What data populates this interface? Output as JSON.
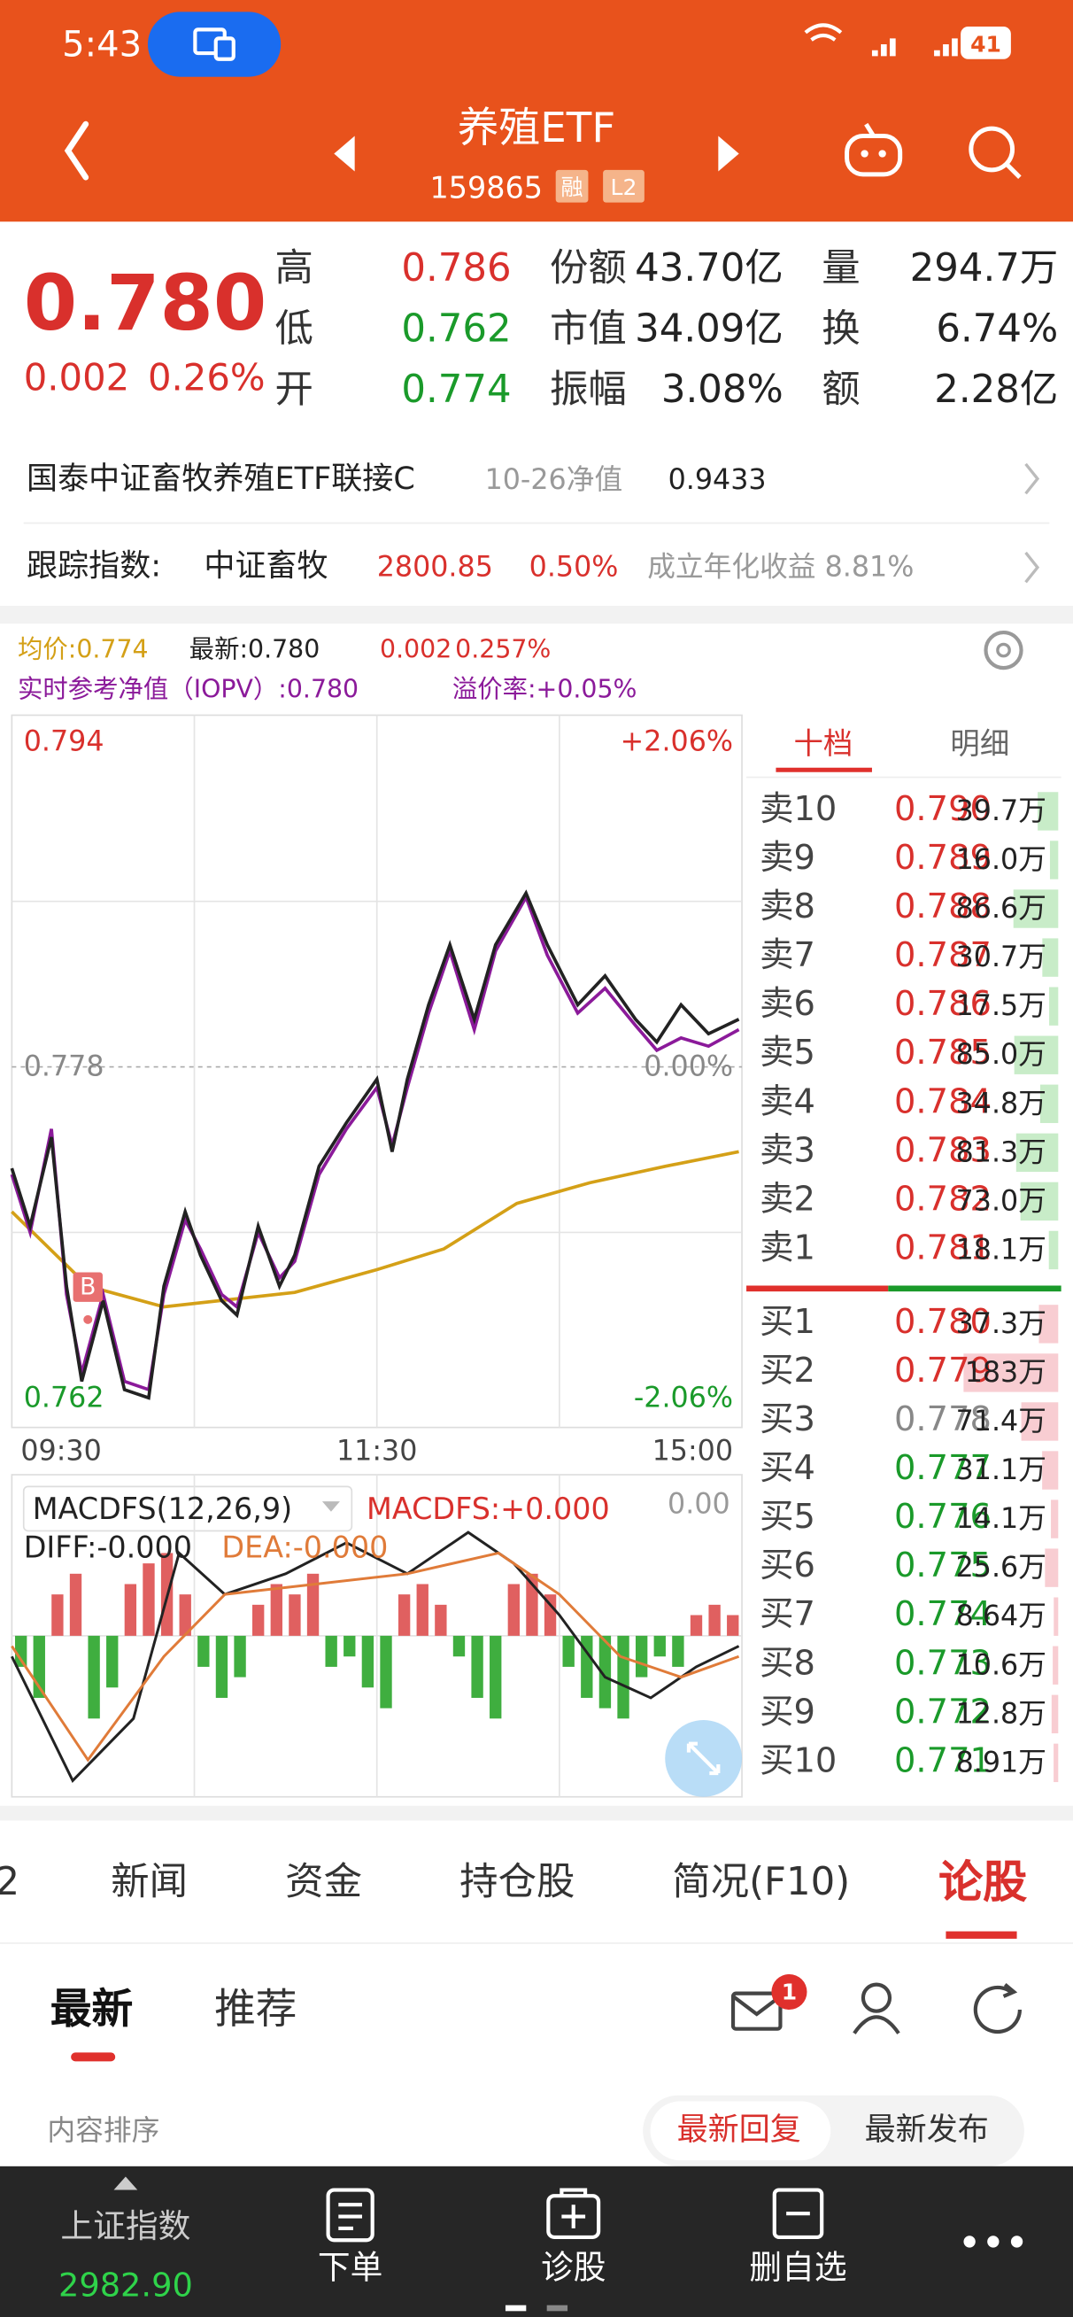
{
  "status_bar": {
    "time": "5:43",
    "battery": "41"
  },
  "header": {
    "title": "养殖ETF",
    "code": "159865",
    "badges": [
      "融",
      "L2"
    ]
  },
  "quote": {
    "price": "0.780",
    "change": "0.002",
    "change_pct": "0.26%",
    "stats": [
      [
        {
          "label": "高",
          "value": "0.786"
        },
        {
          "label": "低",
          "value": "0.762"
        },
        {
          "label": "开",
          "value": "0.774"
        }
      ],
      [
        {
          "label": "份额",
          "value": "43.70亿"
        },
        {
          "label": "市值",
          "value": "34.09亿"
        },
        {
          "label": "振幅",
          "value": "3.08%"
        }
      ],
      [
        {
          "label": "量",
          "value": "294.7万"
        },
        {
          "label": "换",
          "value": "6.74%"
        },
        {
          "label": "额",
          "value": "2.28亿"
        }
      ]
    ]
  },
  "fund_row": {
    "name": "国泰中证畜牧养殖ETF联接C",
    "date_label": "10-26净值",
    "nav": "0.9433"
  },
  "index_row": {
    "label": "跟踪指数:",
    "name": "中证畜牧",
    "value": "2800.85",
    "change": "0.50%",
    "annual": "成立年化收益 8.81%"
  },
  "info": {
    "avg": "均价:0.774",
    "latest": "最新:0.780",
    "change": "0.002",
    "pct": "0.257%",
    "iopv": "实时参考净值（IOPV）:0.780",
    "premium": "溢价率:+0.05%"
  },
  "chart_data": [
    {
      "type": "line",
      "xlim": [
        0,
        240
      ],
      "xticks": [
        {
          "value": 0,
          "label": "09:30"
        },
        {
          "value": 120,
          "label": "11:30"
        },
        {
          "value": 240,
          "label": "15:00"
        }
      ],
      "xgrid": [
        60,
        120,
        180
      ],
      "ylim": [
        0.762,
        0.794
      ],
      "yticks": [
        0.762,
        0.778,
        0.794
      ],
      "ygrid": [
        0.77,
        0.786
      ],
      "right_labels": [
        "-2.06%",
        "0.00%",
        "+2.06%"
      ],
      "series": [
        {
          "color": "#222222",
          "x": [
            0,
            6,
            13,
            18,
            23,
            30,
            37,
            45,
            50,
            57,
            62,
            69,
            74,
            81,
            88,
            93,
            101,
            110,
            120,
            125,
            130,
            137,
            144,
            152,
            159,
            169,
            176,
            186,
            195,
            205,
            212,
            220,
            229,
            239
          ],
          "values": [
            0.7731,
            0.7703,
            0.7746,
            0.7674,
            0.7628,
            0.7667,
            0.7624,
            0.762,
            0.7674,
            0.771,
            0.7689,
            0.7667,
            0.766,
            0.7703,
            0.7674,
            0.7689,
            0.7732,
            0.7753,
            0.7774,
            0.7739,
            0.7774,
            0.781,
            0.7839,
            0.7803,
            0.7839,
            0.7864,
            0.7839,
            0.781,
            0.7824,
            0.7803,
            0.7792,
            0.781,
            0.7796,
            0.7803
          ]
        },
        {
          "color": "#8b1a9a",
          "x": [
            0,
            6,
            13,
            18,
            23,
            30,
            37,
            45,
            50,
            57,
            62,
            69,
            74,
            81,
            88,
            93,
            101,
            110,
            120,
            125,
            130,
            137,
            144,
            152,
            159,
            169,
            176,
            186,
            195,
            205,
            212,
            220,
            229,
            239
          ],
          "values": [
            0.7728,
            0.77,
            0.775,
            0.767,
            0.7632,
            0.767,
            0.7628,
            0.7624,
            0.767,
            0.7706,
            0.7692,
            0.767,
            0.7664,
            0.77,
            0.7678,
            0.7686,
            0.7728,
            0.775,
            0.777,
            0.7742,
            0.777,
            0.7806,
            0.7836,
            0.7798,
            0.7836,
            0.7862,
            0.7834,
            0.7806,
            0.7818,
            0.78,
            0.7788,
            0.7794,
            0.779,
            0.7798
          ]
        },
        {
          "color": "#d4a017",
          "x": [
            0,
            25,
            50,
            93,
            120,
            142,
            166,
            190,
            215,
            239
          ],
          "values": [
            0.771,
            0.7674,
            0.7664,
            0.7671,
            0.7682,
            0.7692,
            0.7714,
            0.7724,
            0.7732,
            0.7739
          ]
        }
      ],
      "annotation": {
        "text": "B",
        "x": 25,
        "y": 0.7665
      }
    },
    {
      "type": "macd",
      "title": "MACDFS(12,26,9)",
      "labels": [
        "MACDFS:+0.000",
        "DIFF:-0.000",
        "DEA:-0.000"
      ],
      "top_label": "0.00",
      "xlim": [
        0,
        240
      ],
      "ylim": [
        -0.0015,
        0.0015
      ],
      "up_color": "#e06060",
      "down_color": "#3fae3f",
      "bars": {
        "x": [
          3,
          9,
          15,
          21,
          27,
          33,
          39,
          45,
          51,
          57,
          63,
          69,
          75,
          81,
          87,
          93,
          99,
          105,
          111,
          117,
          123,
          129,
          135,
          141,
          147,
          153,
          159,
          165,
          171,
          177,
          183,
          189,
          195,
          201,
          207,
          213,
          219,
          225,
          231,
          237
        ],
        "values": [
          -0.0003,
          -0.0006,
          0.0004,
          0.0006,
          -0.0008,
          -0.0005,
          0.0005,
          0.0007,
          0.0008,
          0.0004,
          -0.0003,
          -0.0006,
          -0.0004,
          0.0003,
          0.0005,
          0.0004,
          0.0006,
          -0.0003,
          -0.0002,
          -0.0005,
          -0.0007,
          0.0004,
          0.0005,
          0.0003,
          -0.0002,
          -0.0006,
          -0.0008,
          0.0005,
          0.0006,
          0.0004,
          -0.0003,
          -0.0006,
          -0.0007,
          -0.0008,
          -0.0004,
          -0.0002,
          -0.0003,
          0.0002,
          0.0003,
          0.0002
        ]
      },
      "series": [
        {
          "color": "#222222",
          "x": [
            0,
            20,
            40,
            55,
            70,
            90,
            110,
            130,
            150,
            165,
            180,
            195,
            210,
            225,
            239
          ],
          "values": [
            -0.0002,
            -0.0014,
            -0.0008,
            0.0008,
            0.0004,
            0.0006,
            0.0009,
            0.0006,
            0.001,
            0.0007,
            0.0002,
            -0.0004,
            -0.0006,
            -0.0003,
            -0.0001
          ]
        },
        {
          "color": "#e07b39",
          "x": [
            0,
            25,
            50,
            70,
            100,
            130,
            160,
            180,
            200,
            220,
            239
          ],
          "values": [
            -0.0001,
            -0.0012,
            -0.0002,
            0.0004,
            0.0005,
            0.0006,
            0.0008,
            0.0004,
            -0.0002,
            -0.0004,
            -0.0002
          ]
        }
      ]
    }
  ],
  "order_book": {
    "tabs": [
      "十档",
      "明细"
    ],
    "asks": [
      {
        "label": "卖10",
        "price": "0.790",
        "volume": 39.7,
        "volume_label": "39.7万"
      },
      {
        "label": "卖9",
        "price": "0.789",
        "volume": 16.0,
        "volume_label": "16.0万"
      },
      {
        "label": "卖8",
        "price": "0.788",
        "volume": 86.6,
        "volume_label": "86.6万"
      },
      {
        "label": "卖7",
        "price": "0.787",
        "volume": 30.7,
        "volume_label": "30.7万"
      },
      {
        "label": "卖6",
        "price": "0.786",
        "volume": 17.5,
        "volume_label": "17.5万"
      },
      {
        "label": "卖5",
        "price": "0.785",
        "volume": 85.0,
        "volume_label": "85.0万"
      },
      {
        "label": "卖4",
        "price": "0.784",
        "volume": 34.8,
        "volume_label": "34.8万"
      },
      {
        "label": "卖3",
        "price": "0.783",
        "volume": 81.3,
        "volume_label": "81.3万"
      },
      {
        "label": "卖2",
        "price": "0.782",
        "volume": 73.0,
        "volume_label": "73.0万"
      },
      {
        "label": "卖1",
        "price": "0.781",
        "volume": 18.1,
        "volume_label": "18.1万"
      }
    ],
    "bids": [
      {
        "label": "买1",
        "price": "0.780",
        "volume": 37.3,
        "volume_label": "37.3万"
      },
      {
        "label": "买2",
        "price": "0.779",
        "volume": 183,
        "volume_label": "183万"
      },
      {
        "label": "买3",
        "price": "0.778",
        "volume": 71.4,
        "volume_label": "71.4万"
      },
      {
        "label": "买4",
        "price": "0.777",
        "volume": 31.1,
        "volume_label": "31.1万"
      },
      {
        "label": "买5",
        "price": "0.776",
        "volume": 14.1,
        "volume_label": "14.1万"
      },
      {
        "label": "买6",
        "price": "0.775",
        "volume": 25.6,
        "volume_label": "25.6万"
      },
      {
        "label": "买7",
        "price": "0.774",
        "volume": 8.64,
        "volume_label": "8.64万"
      },
      {
        "label": "买8",
        "price": "0.773",
        "volume": 10.6,
        "volume_label": "10.6万"
      },
      {
        "label": "买9",
        "price": "0.772",
        "volume": 12.8,
        "volume_label": "12.8万"
      },
      {
        "label": "买10",
        "price": "0.771",
        "volume": 8.91,
        "volume_label": "8.91万"
      }
    ]
  },
  "tabs": [
    "2",
    "新闻",
    "资金",
    "持仓股",
    "简况(F10)",
    "论股"
  ],
  "active_tab": 5,
  "feed": {
    "tabs": [
      "最新",
      "推荐"
    ],
    "badge": "1",
    "sort_label": "内容排序",
    "sort_options": [
      "最新回复",
      "最新发布"
    ]
  },
  "bottom_bar": {
    "index_name": "上证指数",
    "index_value": "2982.90",
    "items": [
      "下单",
      "诊股",
      "删自选"
    ]
  }
}
